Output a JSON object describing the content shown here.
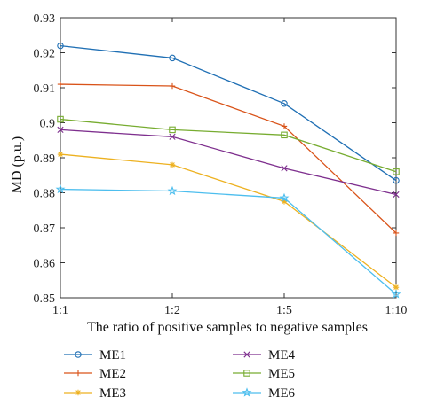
{
  "chart_data": {
    "type": "line",
    "title": "",
    "xlabel": "The ratio of positive samples to negative samples",
    "ylabel": "MD (p.u.)",
    "categories": [
      "1:1",
      "1:2",
      "1:5",
      "1:10"
    ],
    "ylim": [
      0.85,
      0.93
    ],
    "yticks": [
      "0.85",
      "0.86",
      "0.87",
      "0.88",
      "0.89",
      "0.9",
      "0.91",
      "0.92",
      "0.93"
    ],
    "grid": false,
    "legend_position": "bottom",
    "series": [
      {
        "name": "ME1",
        "color": "#1f6fb4",
        "marker": "circle",
        "values": [
          0.922,
          0.9185,
          0.9055,
          0.8835
        ]
      },
      {
        "name": "ME2",
        "color": "#d95319",
        "marker": "plus",
        "values": [
          0.911,
          0.9105,
          0.899,
          0.8685
        ]
      },
      {
        "name": "ME3",
        "color": "#edb120",
        "marker": "asterisk",
        "values": [
          0.891,
          0.888,
          0.8775,
          0.853
        ]
      },
      {
        "name": "ME4",
        "color": "#7e2f8e",
        "marker": "x",
        "values": [
          0.898,
          0.896,
          0.887,
          0.8795
        ]
      },
      {
        "name": "ME5",
        "color": "#77ac30",
        "marker": "square",
        "values": [
          0.901,
          0.898,
          0.8965,
          0.886
        ]
      },
      {
        "name": "ME6",
        "color": "#4dbeee",
        "marker": "pentagram",
        "values": [
          0.881,
          0.8805,
          0.8785,
          0.851
        ]
      }
    ]
  }
}
